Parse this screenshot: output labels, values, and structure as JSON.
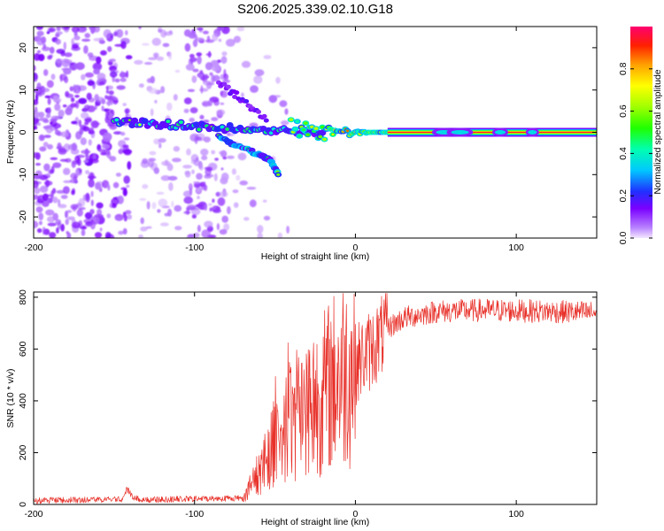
{
  "title": "S206.2025.339.02.10.G18",
  "chart_data": [
    {
      "type": "heatmap",
      "name": "spectrogram",
      "xlabel": "Height of straight line (km)",
      "ylabel": "Frequency (Hz)",
      "xlim": [
        -200,
        150
      ],
      "ylim": [
        -25,
        25
      ],
      "xticks": [
        -200,
        -100,
        0,
        100
      ],
      "yticks": [
        -20,
        -10,
        0,
        10,
        20
      ],
      "colorbar": {
        "label": "Normalized spectral amplitude",
        "range": [
          0,
          1
        ],
        "ticks": [
          0.0,
          0.2,
          0.4,
          0.6,
          0.8
        ]
      },
      "features": {
        "carrier_line": {
          "x_start": -150,
          "x_end": 150,
          "frequency_hz": 0,
          "amplitude": 0.95
        },
        "lower_branch": {
          "x": [
            -85,
            -75,
            -65,
            -58,
            -52,
            -48
          ],
          "frequency_hz": [
            -1,
            -3,
            -4.5,
            -5.5,
            -7,
            -10
          ]
        },
        "upper_branch": {
          "x": [
            -85,
            -75,
            -65,
            -55
          ],
          "frequency_hz": [
            12,
            9,
            6,
            3
          ]
        },
        "noise_region": {
          "x_start": -200,
          "x_end": -140,
          "frequency_range_hz": [
            -25,
            25
          ]
        }
      }
    },
    {
      "type": "line",
      "name": "snr",
      "xlabel": "Height of straight line (km)",
      "ylabel": "SNR (10 * v/v)",
      "xlim": [
        -200,
        150
      ],
      "ylim": [
        0,
        820
      ],
      "xticks": [
        -200,
        -100,
        0,
        100
      ],
      "yticks": [
        0,
        200,
        400,
        600,
        800
      ],
      "color": "#e8312a",
      "envelope": {
        "x": [
          -200,
          -145,
          -142,
          -138,
          -130,
          -70,
          -60,
          -50,
          -40,
          -30,
          -20,
          -10,
          0,
          10,
          15,
          20,
          30,
          50,
          80,
          120,
          150
        ],
        "snr": [
          15,
          20,
          60,
          25,
          18,
          25,
          120,
          260,
          320,
          380,
          430,
          500,
          540,
          600,
          640,
          680,
          720,
          745,
          750,
          745,
          740
        ]
      }
    }
  ]
}
